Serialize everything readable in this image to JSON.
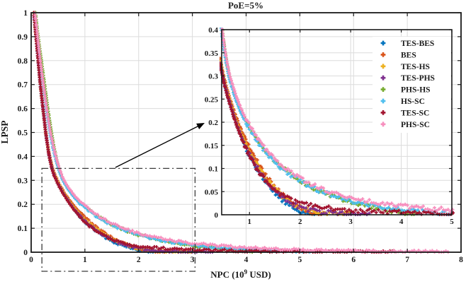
{
  "chart_data": {
    "type": "scatter",
    "title": "PoE=5%",
    "xlabel": "NPC (10^9 USD)",
    "xlabel_parts": {
      "prefix": "NPC (10",
      "exponent": "9",
      "suffix": " USD)"
    },
    "ylabel": "LPSP",
    "marker": "plus",
    "grid": true,
    "legend_position": "inset-top-right",
    "axis_color": "#1a1a1a",
    "grid_color": "#dcdcdc",
    "main_axes": {
      "xlim": [
        0,
        8
      ],
      "ylim": [
        0,
        1
      ],
      "xticks": {
        "values": [
          0,
          1,
          2,
          3,
          4,
          5,
          6,
          7,
          8
        ],
        "labels": [
          "0",
          "1",
          "2",
          "3",
          "4",
          "5",
          "6",
          "7",
          "8"
        ]
      },
      "yticks": {
        "values": [
          0,
          0.1,
          0.2,
          0.3,
          0.4,
          0.5,
          0.6,
          0.7,
          0.8,
          0.9,
          1
        ],
        "labels": [
          "0",
          "0.1",
          "0.2",
          "0.3",
          "0.4",
          "0.5",
          "0.6",
          "0.7",
          "0.8",
          "0.9",
          "1"
        ]
      }
    },
    "inset_axes": {
      "xlim": [
        0.45,
        5
      ],
      "ylim": [
        0,
        0.4
      ],
      "xticks": {
        "values": [
          1,
          2,
          3,
          4,
          5
        ],
        "labels": [
          "1",
          "2",
          "3",
          "4",
          "5"
        ]
      },
      "yticks": {
        "values": [
          0,
          0.05,
          0.1,
          0.15,
          0.2,
          0.25,
          0.3,
          0.35,
          0.4
        ],
        "labels": [
          "0",
          "0.05",
          "0.1",
          "0.15",
          "0.2",
          "0.25",
          "0.3",
          "0.35",
          "0.4"
        ]
      }
    },
    "zoom_region": {
      "x": [
        0.2,
        3.05
      ],
      "y": [
        0,
        0.35
      ]
    },
    "series": [
      {
        "name": "TES-BES",
        "color": "#0072BD",
        "points": [
          [
            0.05,
            1
          ],
          [
            0.09,
            0.9
          ],
          [
            0.13,
            0.8
          ],
          [
            0.17,
            0.7
          ],
          [
            0.22,
            0.6
          ],
          [
            0.27,
            0.5
          ],
          [
            0.33,
            0.41
          ],
          [
            0.38,
            0.36
          ],
          [
            0.43,
            0.325
          ],
          [
            0.5,
            0.285
          ],
          [
            0.6,
            0.245
          ],
          [
            0.7,
            0.21
          ],
          [
            0.8,
            0.178
          ],
          [
            0.9,
            0.152
          ],
          [
            1.0,
            0.128
          ],
          [
            1.1,
            0.107
          ],
          [
            1.2,
            0.089
          ],
          [
            1.3,
            0.073
          ],
          [
            1.4,
            0.059
          ],
          [
            1.5,
            0.047
          ],
          [
            1.6,
            0.036
          ],
          [
            1.7,
            0.027
          ],
          [
            1.8,
            0.019
          ],
          [
            1.9,
            0.012
          ],
          [
            2.0,
            0.007
          ],
          [
            2.1,
            0.004
          ],
          [
            2.2,
            0.002
          ],
          [
            2.3,
            0.001
          ]
        ]
      },
      {
        "name": "BES",
        "color": "#D95319",
        "points": [
          [
            0.05,
            1
          ],
          [
            0.09,
            0.9
          ],
          [
            0.13,
            0.8
          ],
          [
            0.17,
            0.7
          ],
          [
            0.22,
            0.6
          ],
          [
            0.27,
            0.5
          ],
          [
            0.33,
            0.415
          ],
          [
            0.38,
            0.365
          ],
          [
            0.43,
            0.33
          ],
          [
            0.5,
            0.295
          ],
          [
            0.6,
            0.255
          ],
          [
            0.7,
            0.222
          ],
          [
            0.8,
            0.193
          ],
          [
            0.9,
            0.168
          ],
          [
            1.0,
            0.145
          ],
          [
            1.1,
            0.125
          ],
          [
            1.2,
            0.106
          ],
          [
            1.3,
            0.089
          ],
          [
            1.4,
            0.074
          ],
          [
            1.5,
            0.061
          ],
          [
            1.6,
            0.049
          ],
          [
            1.7,
            0.038
          ],
          [
            1.8,
            0.029
          ],
          [
            1.9,
            0.021
          ],
          [
            2.0,
            0.015
          ],
          [
            2.1,
            0.01
          ],
          [
            2.2,
            0.006
          ],
          [
            2.3,
            0.004
          ],
          [
            2.4,
            0.002
          ],
          [
            2.5,
            0.001
          ]
        ]
      },
      {
        "name": "TES-HS",
        "color": "#EDB120",
        "points": [
          [
            0.05,
            1
          ],
          [
            0.09,
            0.9
          ],
          [
            0.13,
            0.8
          ],
          [
            0.17,
            0.7
          ],
          [
            0.22,
            0.6
          ],
          [
            0.27,
            0.5
          ],
          [
            0.33,
            0.41
          ],
          [
            0.38,
            0.36
          ],
          [
            0.43,
            0.325
          ],
          [
            0.5,
            0.29
          ],
          [
            0.6,
            0.25
          ],
          [
            0.7,
            0.215
          ],
          [
            0.8,
            0.185
          ],
          [
            0.9,
            0.159
          ],
          [
            1.0,
            0.136
          ],
          [
            1.1,
            0.116
          ],
          [
            1.2,
            0.098
          ],
          [
            1.3,
            0.082
          ],
          [
            1.4,
            0.068
          ],
          [
            1.5,
            0.056
          ],
          [
            1.6,
            0.045
          ],
          [
            1.7,
            0.036
          ],
          [
            1.8,
            0.028
          ],
          [
            1.9,
            0.021
          ],
          [
            2.0,
            0.016
          ],
          [
            2.2,
            0.009
          ],
          [
            2.4,
            0.005
          ],
          [
            2.6,
            0.003
          ],
          [
            2.8,
            0.002
          ],
          [
            3.0,
            0.001
          ]
        ]
      },
      {
        "name": "TES-PHS",
        "color": "#7E2F8E",
        "points": [
          [
            0.05,
            1
          ],
          [
            0.09,
            0.9
          ],
          [
            0.13,
            0.8
          ],
          [
            0.17,
            0.7
          ],
          [
            0.22,
            0.6
          ],
          [
            0.27,
            0.5
          ],
          [
            0.33,
            0.408
          ],
          [
            0.38,
            0.356
          ],
          [
            0.43,
            0.32
          ],
          [
            0.5,
            0.286
          ],
          [
            0.6,
            0.246
          ],
          [
            0.7,
            0.211
          ],
          [
            0.8,
            0.18
          ],
          [
            0.9,
            0.154
          ],
          [
            1.0,
            0.131
          ],
          [
            1.1,
            0.111
          ],
          [
            1.2,
            0.093
          ],
          [
            1.3,
            0.078
          ],
          [
            1.4,
            0.064
          ],
          [
            1.5,
            0.053
          ],
          [
            1.6,
            0.043
          ],
          [
            1.7,
            0.034
          ],
          [
            1.8,
            0.027
          ],
          [
            1.9,
            0.021
          ],
          [
            2.0,
            0.016
          ],
          [
            2.2,
            0.01
          ],
          [
            2.4,
            0.006
          ],
          [
            2.6,
            0.004
          ],
          [
            2.8,
            0.003
          ],
          [
            3.0,
            0.002
          ],
          [
            3.2,
            0.001
          ],
          [
            3.4,
            0.001
          ]
        ]
      },
      {
        "name": "PHS-HS",
        "color": "#77AC30",
        "points": [
          [
            0.08,
            1
          ],
          [
            0.13,
            0.9
          ],
          [
            0.19,
            0.8
          ],
          [
            0.25,
            0.7
          ],
          [
            0.31,
            0.6
          ],
          [
            0.37,
            0.51
          ],
          [
            0.42,
            0.445
          ],
          [
            0.48,
            0.38
          ],
          [
            0.54,
            0.335
          ],
          [
            0.6,
            0.3
          ],
          [
            0.7,
            0.262
          ],
          [
            0.8,
            0.233
          ],
          [
            0.9,
            0.21
          ],
          [
            1.0,
            0.19
          ],
          [
            1.2,
            0.155
          ],
          [
            1.4,
            0.128
          ],
          [
            1.6,
            0.106
          ],
          [
            1.8,
            0.088
          ],
          [
            2.0,
            0.073
          ],
          [
            2.2,
            0.061
          ],
          [
            2.4,
            0.051
          ],
          [
            2.6,
            0.042
          ],
          [
            2.8,
            0.035
          ],
          [
            3.0,
            0.028
          ],
          [
            3.2,
            0.022
          ],
          [
            3.4,
            0.017
          ],
          [
            3.6,
            0.013
          ],
          [
            3.8,
            0.009
          ],
          [
            4.0,
            0.006
          ],
          [
            4.2,
            0.003
          ],
          [
            4.3,
            0.001
          ]
        ]
      },
      {
        "name": "HS-SC",
        "color": "#4DBEEE",
        "points": [
          [
            0.06,
            1
          ],
          [
            0.11,
            0.9
          ],
          [
            0.16,
            0.8
          ],
          [
            0.22,
            0.7
          ],
          [
            0.28,
            0.6
          ],
          [
            0.34,
            0.51
          ],
          [
            0.4,
            0.44
          ],
          [
            0.46,
            0.385
          ],
          [
            0.52,
            0.34
          ],
          [
            0.6,
            0.295
          ],
          [
            0.7,
            0.258
          ],
          [
            0.8,
            0.228
          ],
          [
            0.9,
            0.205
          ],
          [
            1.0,
            0.185
          ],
          [
            1.2,
            0.151
          ],
          [
            1.4,
            0.125
          ],
          [
            1.6,
            0.104
          ],
          [
            1.8,
            0.087
          ],
          [
            2.0,
            0.073
          ],
          [
            2.2,
            0.061
          ],
          [
            2.4,
            0.051
          ],
          [
            2.6,
            0.043
          ],
          [
            2.8,
            0.036
          ],
          [
            3.0,
            0.03
          ],
          [
            3.2,
            0.025
          ],
          [
            3.4,
            0.021
          ],
          [
            3.6,
            0.017
          ],
          [
            3.8,
            0.014
          ],
          [
            4.0,
            0.011
          ],
          [
            4.2,
            0.009
          ],
          [
            4.4,
            0.007
          ],
          [
            4.6,
            0.005
          ],
          [
            4.8,
            0.004
          ],
          [
            5.0,
            0.003
          ],
          [
            5.2,
            0.002
          ]
        ]
      },
      {
        "name": "TES-SC",
        "color": "#A2142F",
        "points": [
          [
            0.05,
            1
          ],
          [
            0.09,
            0.9
          ],
          [
            0.13,
            0.8
          ],
          [
            0.17,
            0.7
          ],
          [
            0.22,
            0.6
          ],
          [
            0.27,
            0.5
          ],
          [
            0.33,
            0.405
          ],
          [
            0.38,
            0.353
          ],
          [
            0.43,
            0.318
          ],
          [
            0.5,
            0.282
          ],
          [
            0.6,
            0.242
          ],
          [
            0.7,
            0.207
          ],
          [
            0.8,
            0.176
          ],
          [
            0.9,
            0.15
          ],
          [
            1.0,
            0.127
          ],
          [
            1.1,
            0.107
          ],
          [
            1.2,
            0.09
          ],
          [
            1.3,
            0.076
          ],
          [
            1.4,
            0.064
          ],
          [
            1.5,
            0.054
          ],
          [
            1.6,
            0.046
          ],
          [
            1.7,
            0.039
          ],
          [
            1.8,
            0.033
          ],
          [
            1.9,
            0.028
          ],
          [
            2.0,
            0.025
          ],
          [
            2.2,
            0.02
          ],
          [
            2.4,
            0.017
          ],
          [
            2.6,
            0.014
          ],
          [
            2.8,
            0.012
          ],
          [
            3.0,
            0.01
          ],
          [
            3.2,
            0.009
          ],
          [
            3.4,
            0.008
          ],
          [
            3.6,
            0.007
          ],
          [
            3.8,
            0.006
          ],
          [
            4.0,
            0.005
          ],
          [
            4.4,
            0.004
          ],
          [
            4.8,
            0.003
          ],
          [
            5.2,
            0.003
          ],
          [
            5.6,
            0.002
          ],
          [
            6.0,
            0.002
          ],
          [
            6.4,
            0.001
          ],
          [
            6.8,
            0.001
          ]
        ]
      },
      {
        "name": "PHS-SC",
        "color": "#F78FBE",
        "points": [
          [
            0.07,
            1
          ],
          [
            0.12,
            0.9
          ],
          [
            0.17,
            0.8
          ],
          [
            0.23,
            0.7
          ],
          [
            0.29,
            0.6
          ],
          [
            0.35,
            0.51
          ],
          [
            0.41,
            0.445
          ],
          [
            0.47,
            0.39
          ],
          [
            0.53,
            0.345
          ],
          [
            0.6,
            0.305
          ],
          [
            0.7,
            0.268
          ],
          [
            0.8,
            0.238
          ],
          [
            0.9,
            0.214
          ],
          [
            1.0,
            0.194
          ],
          [
            1.2,
            0.159
          ],
          [
            1.4,
            0.132
          ],
          [
            1.6,
            0.111
          ],
          [
            1.8,
            0.093
          ],
          [
            2.0,
            0.079
          ],
          [
            2.2,
            0.067
          ],
          [
            2.4,
            0.058
          ],
          [
            2.6,
            0.05
          ],
          [
            2.8,
            0.044
          ],
          [
            3.0,
            0.038
          ],
          [
            3.2,
            0.033
          ],
          [
            3.4,
            0.029
          ],
          [
            3.6,
            0.025
          ],
          [
            3.8,
            0.022
          ],
          [
            4.0,
            0.019
          ],
          [
            4.2,
            0.017
          ],
          [
            4.4,
            0.015
          ],
          [
            4.6,
            0.013
          ],
          [
            4.8,
            0.012
          ],
          [
            5.0,
            0.01
          ],
          [
            5.4,
            0.008
          ],
          [
            5.8,
            0.007
          ],
          [
            6.2,
            0.005
          ],
          [
            6.6,
            0.004
          ],
          [
            7.0,
            0.003
          ],
          [
            7.4,
            0.003
          ],
          [
            7.8,
            0.002
          ]
        ]
      }
    ]
  }
}
